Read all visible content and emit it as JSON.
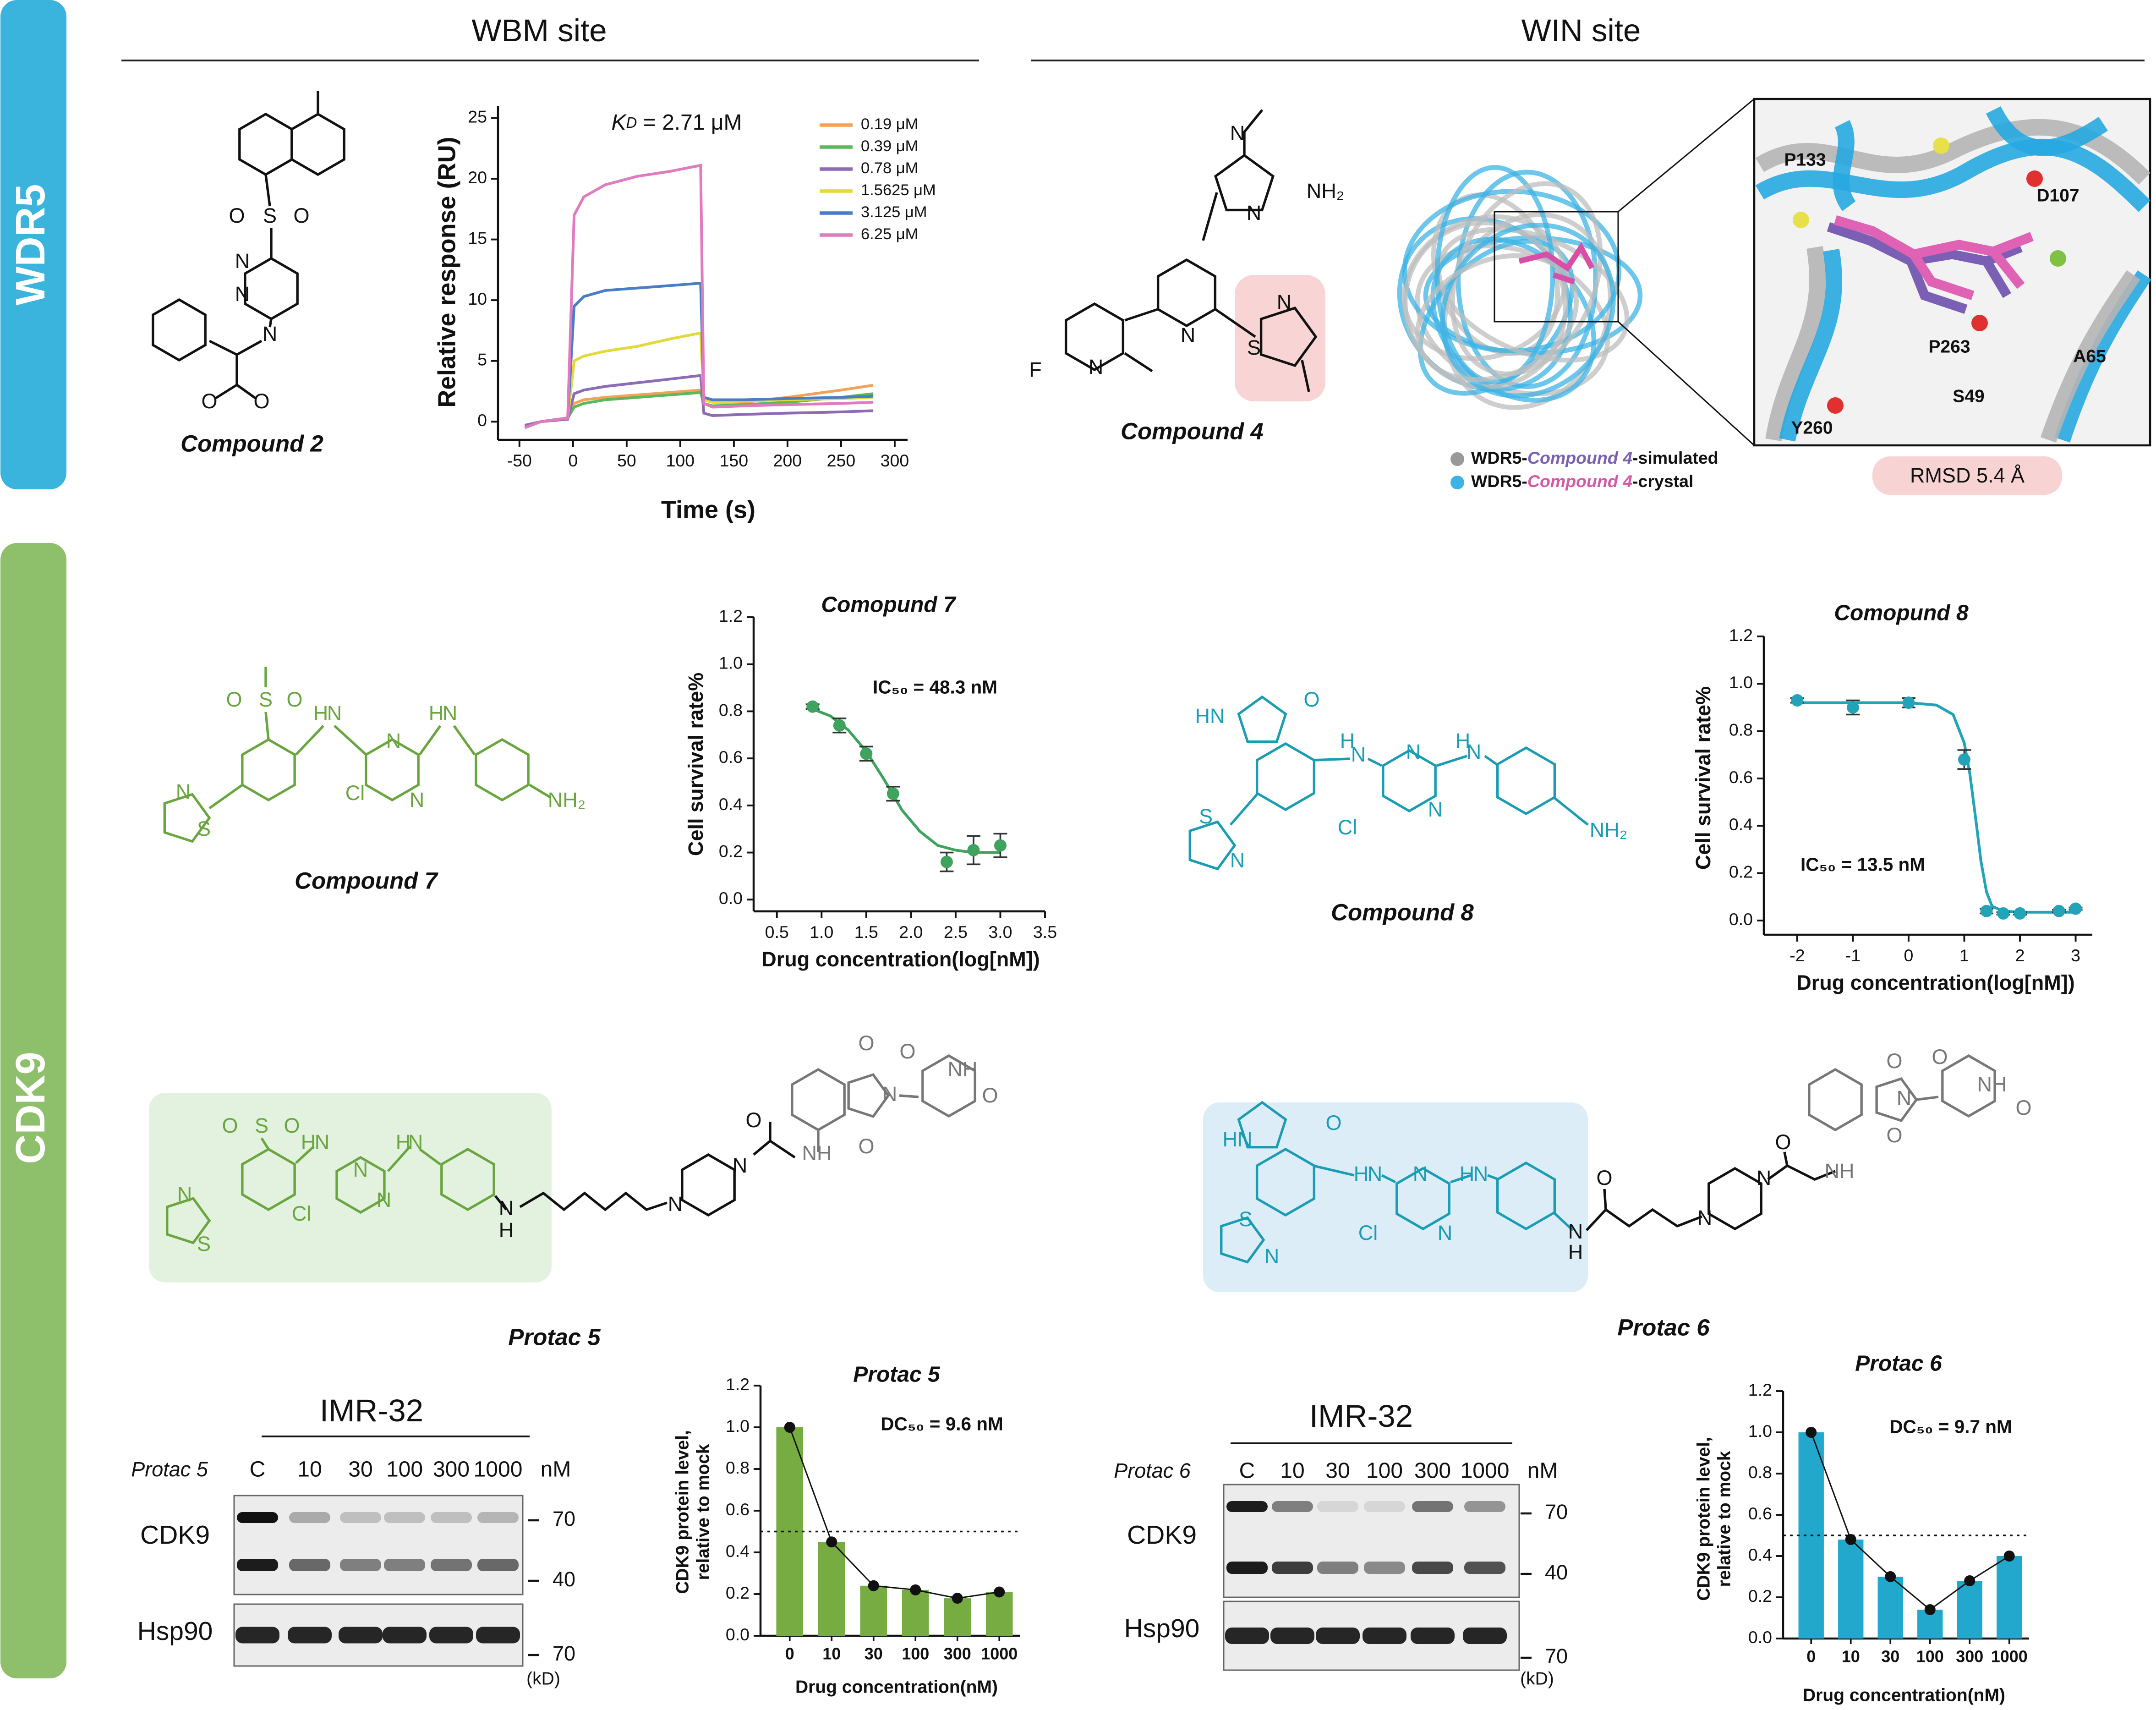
{
  "sections": {
    "wdr5": "WDR5",
    "cdk9": "CDK9",
    "wbm": "WBM site",
    "win": "WIN site"
  },
  "compounds": {
    "c2": "Compound 2",
    "c4": "Compound 4",
    "c7": "Compound 7",
    "c8": "Compound 8",
    "p5": "Protac 5",
    "p6": "Protac 6"
  },
  "atoms": {
    "c2": [
      "O",
      "S",
      "O",
      "N",
      "N",
      "N",
      "O",
      "O"
    ],
    "c4": [
      "N",
      "NH₂",
      "N",
      "N",
      "F",
      "N",
      "S",
      "N"
    ],
    "c7": [
      "O",
      "S",
      "O",
      "H",
      "N",
      "H",
      "N",
      "N",
      "N",
      "Cl",
      "NH₂",
      "N",
      "S"
    ],
    "c8": [
      "HN",
      "O",
      "H",
      "N",
      "N",
      "N",
      "H",
      "N",
      "Cl",
      "NH₂",
      "S",
      "N"
    ],
    "p5": [
      "O",
      "S",
      "O",
      "H",
      "N",
      "H",
      "N",
      "N",
      "N",
      "Cl",
      "N",
      "S",
      "N",
      "H",
      "N",
      "N",
      "O",
      "NH",
      "O",
      "N",
      "O",
      "O",
      "NH",
      "O"
    ],
    "p6": [
      "HN",
      "O",
      "H",
      "N",
      "N",
      "N",
      "H",
      "N",
      "Cl",
      "S",
      "N",
      "N",
      "H",
      "O",
      "N",
      "N",
      "O",
      "NH",
      "O",
      "N",
      "O",
      "O",
      "NH",
      "O"
    ]
  },
  "structure_panel": {
    "legend": [
      [
        "WDR5-",
        "Compound 4",
        "-simulated"
      ],
      [
        "WDR5-",
        "Compound 4",
        "-crystal"
      ]
    ],
    "residues": [
      "P133",
      "D107",
      "P263",
      "S49",
      "A65",
      "Y260"
    ],
    "rmsd": "RMSD 5.4 Å"
  },
  "blots": [
    {
      "cell_line": "IMR-32",
      "treatment": "Protac 5",
      "lanes": [
        "C",
        "10",
        "30",
        "100",
        "300",
        "1000"
      ],
      "unit": "nM",
      "proteins": [
        "CDK9",
        "Hsp90"
      ],
      "markers": [
        "70",
        "40",
        "70"
      ],
      "marker_unit": "(kD)"
    },
    {
      "cell_line": "IMR-32",
      "treatment": "Protac 6",
      "lanes": [
        "C",
        "10",
        "30",
        "100",
        "300",
        "1000"
      ],
      "unit": "nM",
      "proteins": [
        "CDK9",
        "Hsp90"
      ],
      "markers": [
        "70",
        "40",
        "70"
      ],
      "marker_unit": "(kD)"
    }
  ],
  "chart_data": [
    {
      "type": "line",
      "annotation": [
        "K",
        "D",
        " = 2.71 μM"
      ],
      "xlabel": "Time (s)",
      "ylabel": "Relative response (RU)",
      "x": [
        -45,
        -30,
        -5,
        1,
        10,
        30,
        60,
        90,
        119,
        122,
        130,
        160,
        200,
        250,
        280
      ],
      "xlim": [
        -70,
        312
      ],
      "xticks": [
        -50,
        0,
        50,
        100,
        150,
        200,
        250,
        300
      ],
      "ylim": [
        -1.5,
        26
      ],
      "yticks": [
        0,
        5,
        10,
        15,
        20,
        25
      ],
      "legend": "upper right",
      "series": [
        {
          "name": "0.19  μM",
          "color": "#f4a259",
          "values": [
            -0.5,
            0,
            0.3,
            1.5,
            1.8,
            2.0,
            2.2,
            2.4,
            2.6,
            1.8,
            1.6,
            1.6,
            2.0,
            2.6,
            3.0
          ]
        },
        {
          "name": "0.39  μM",
          "color": "#5cb85c",
          "values": [
            -0.5,
            0,
            0.3,
            1.2,
            1.5,
            1.8,
            2.0,
            2.2,
            2.4,
            1.5,
            1.3,
            1.4,
            1.6,
            2.0,
            2.3
          ]
        },
        {
          "name": "0.78  μM",
          "color": "#8e6bb5",
          "values": [
            -0.3,
            0,
            0.2,
            2.3,
            2.6,
            2.9,
            3.2,
            3.5,
            3.8,
            0.7,
            0.5,
            0.6,
            0.7,
            0.8,
            0.9
          ]
        },
        {
          "name": "1.5625  μM",
          "color": "#e3d93a",
          "values": [
            -0.5,
            0,
            0.3,
            5.0,
            5.4,
            5.8,
            6.2,
            6.8,
            7.3,
            1.8,
            1.6,
            1.7,
            1.8,
            1.9,
            2.0
          ]
        },
        {
          "name": "3.125  μM",
          "color": "#4a7ec4",
          "values": [
            -0.5,
            0,
            0.3,
            9.5,
            10.3,
            10.8,
            11.0,
            11.2,
            11.4,
            2.0,
            1.8,
            1.8,
            1.9,
            2.0,
            2.1
          ]
        },
        {
          "name": "6.25  μM",
          "color": "#e07bbf",
          "values": [
            -0.5,
            0,
            0.3,
            17.0,
            18.5,
            19.5,
            20.2,
            20.6,
            21.1,
            1.5,
            1.2,
            1.3,
            1.4,
            1.5,
            1.6
          ]
        }
      ]
    },
    {
      "type": "scatter",
      "title": "Comopund 7",
      "annotation": "IC₅₀ = 48.3 nM",
      "xlabel": "Drug concentration(log[nM])",
      "ylabel": "Cell survival rate%",
      "color": "#3da35d",
      "x": [
        0.9,
        1.2,
        1.5,
        1.8,
        2.4,
        2.7,
        3.0
      ],
      "values": [
        0.82,
        0.74,
        0.62,
        0.45,
        0.16,
        0.21,
        0.23
      ],
      "errors": [
        0.01,
        0.03,
        0.03,
        0.03,
        0.04,
        0.06,
        0.05
      ],
      "fit": {
        "x": [
          0.9,
          1.1,
          1.3,
          1.5,
          1.7,
          1.9,
          2.1,
          2.3,
          2.5,
          2.7,
          3.0
        ],
        "values": [
          0.81,
          0.78,
          0.72,
          0.63,
          0.51,
          0.38,
          0.29,
          0.23,
          0.21,
          0.2,
          0.2
        ]
      },
      "xlim": [
        0.24,
        3.5
      ],
      "xticks": [
        0.5,
        {
          "value": 1,
          "label": "1.0"
        },
        1.5,
        {
          "value": 2,
          "label": "2.0"
        },
        2.5,
        {
          "value": 3,
          "label": "3.0"
        },
        3.5
      ],
      "ylim": [
        -0.05,
        1.2
      ],
      "yticks": [
        {
          "value": 0,
          "label": "0.0"
        },
        0.2,
        0.4,
        0.6,
        0.8,
        {
          "value": 1,
          "label": "1.0"
        },
        1.2
      ]
    },
    {
      "type": "scatter",
      "title": "Comopund 8",
      "annotation": "IC₅₀ = 13.5 nM",
      "xlabel": "Drug concentration(log[nM])",
      "ylabel": "Cell survival rate%",
      "color": "#22a3b8",
      "x": [
        -2,
        -1,
        0,
        1,
        1.4,
        1.7,
        2,
        2.7,
        3
      ],
      "values": [
        0.93,
        0.9,
        0.92,
        0.68,
        0.04,
        0.03,
        0.03,
        0.04,
        0.05
      ],
      "errors": [
        0.01,
        0.03,
        0.02,
        0.04,
        0.01,
        0.005,
        0.005,
        0.005,
        0.005
      ],
      "fit": {
        "x": [
          -2,
          -1,
          0,
          0.5,
          0.8,
          1,
          1.1,
          1.2,
          1.3,
          1.4,
          1.5,
          1.7,
          2,
          3
        ],
        "values": [
          0.92,
          0.92,
          0.92,
          0.91,
          0.87,
          0.75,
          0.62,
          0.44,
          0.25,
          0.12,
          0.06,
          0.04,
          0.035,
          0.035
        ]
      },
      "xlim": [
        -2.6,
        3.3
      ],
      "xticks": [
        -2,
        -1,
        0,
        1,
        2,
        3
      ],
      "ylim": [
        -0.06,
        1.2
      ],
      "yticks": [
        {
          "value": 0,
          "label": "0.0"
        },
        0.2,
        0.4,
        0.6,
        0.8,
        {
          "value": 1,
          "label": "1.0"
        },
        1.2
      ]
    },
    {
      "type": "bar",
      "title": "Protac 5",
      "annotation": "DC₅₀ = 9.6 nM",
      "xlabel": "Drug concentration(nM)",
      "ylabel": [
        "CDK9 protein level,",
        "relative to mock"
      ],
      "color": "#76ac42",
      "categories": [
        "0",
        "10",
        "30",
        "100",
        "300",
        "1000"
      ],
      "values": [
        1.0,
        0.45,
        0.24,
        0.22,
        0.18,
        0.21
      ],
      "reference_line": 0.5,
      "ylim": [
        0,
        1.2
      ],
      "yticks": [
        {
          "value": 0,
          "label": "0.0"
        },
        0.2,
        0.4,
        0.6,
        0.8,
        {
          "value": 1,
          "label": "1.0"
        },
        1.2
      ]
    },
    {
      "type": "bar",
      "title": "Protac 6",
      "annotation": "DC₅₀ = 9.7 nM",
      "xlabel": "Drug concentration(nM)",
      "ylabel": [
        "CDK9 protein level,",
        "relative to mock"
      ],
      "color": "#22a8cc",
      "categories": [
        "0",
        "10",
        "30",
        "100",
        "300",
        "1000"
      ],
      "values": [
        1.0,
        0.48,
        0.3,
        0.14,
        0.28,
        0.4
      ],
      "reference_line": 0.5,
      "ylim": [
        0,
        1.2
      ],
      "yticks": [
        {
          "value": 0,
          "label": "0.0"
        },
        0.2,
        0.4,
        0.6,
        0.8,
        {
          "value": 1,
          "label": "1.0"
        },
        1.2
      ]
    }
  ]
}
